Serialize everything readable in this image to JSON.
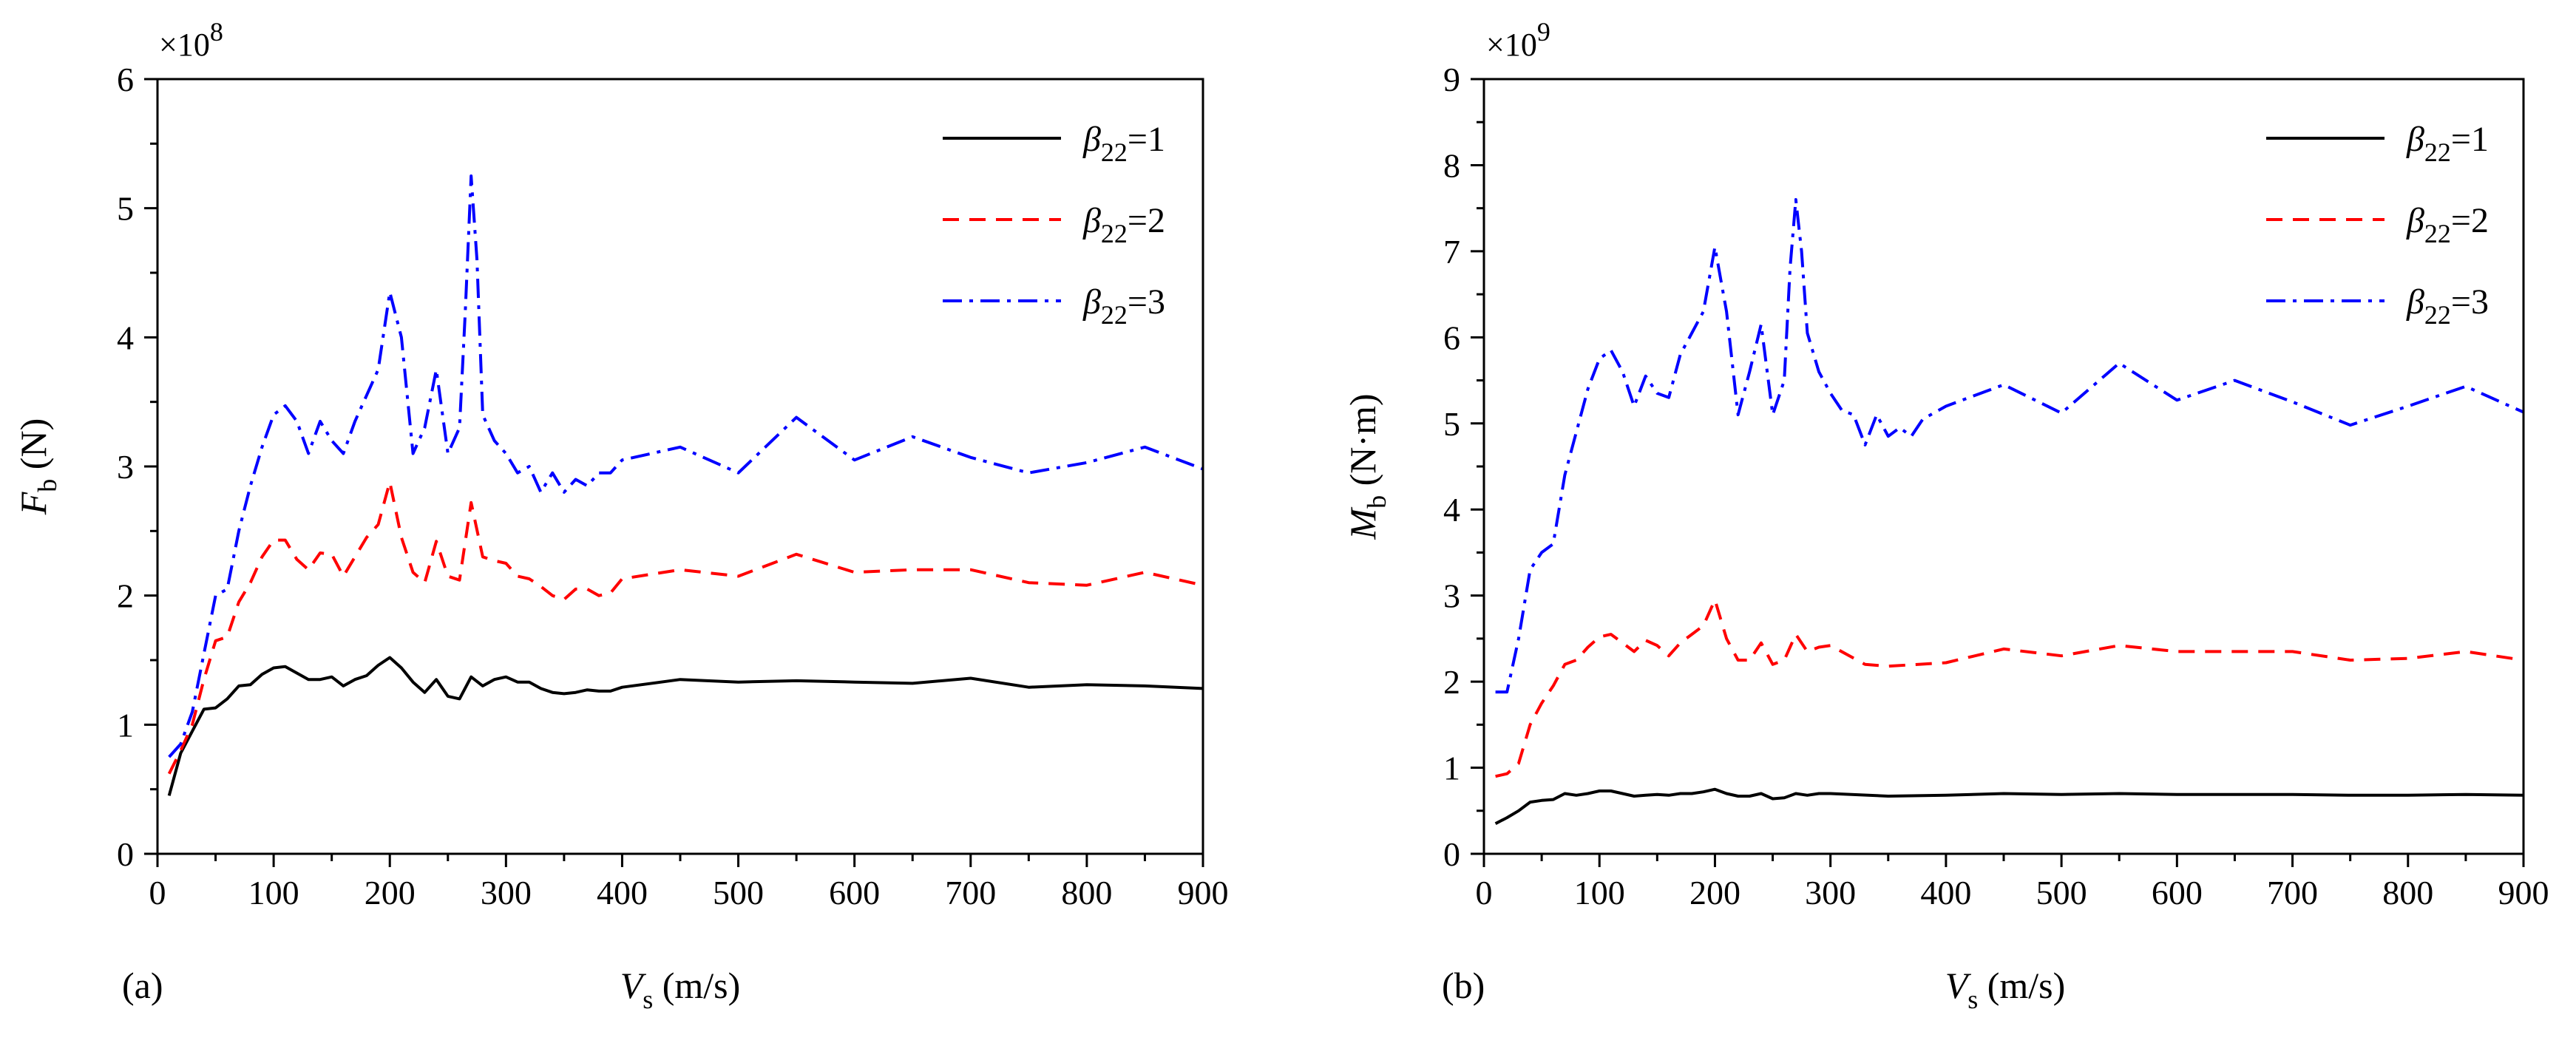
{
  "chart_data": [
    {
      "type": "line",
      "panel_label": "(a)",
      "exponent_label": "×10",
      "exponent_power": "8",
      "ylabel": {
        "symbol": "F",
        "sub": "b",
        "unit": " (N)"
      },
      "xlabel": {
        "symbol": "V",
        "sub": "s",
        "unit": " (m/s)"
      },
      "xlim": [
        0,
        900
      ],
      "ylim": [
        0,
        6
      ],
      "xticks": [
        0,
        100,
        200,
        300,
        400,
        500,
        600,
        700,
        800,
        900
      ],
      "yticks": [
        0,
        1,
        2,
        3,
        4,
        5,
        6
      ],
      "legend_position": "top-right",
      "series": [
        {
          "name": "β22=1",
          "legend_symbol": "β",
          "legend_sub": "22",
          "legend_rest": "=1",
          "color": "#000000",
          "dash": "",
          "x": [
            10,
            20,
            30,
            40,
            50,
            60,
            70,
            80,
            90,
            100,
            110,
            120,
            130,
            140,
            150,
            160,
            170,
            180,
            190,
            200,
            210,
            220,
            230,
            240,
            250,
            260,
            270,
            280,
            290,
            300,
            310,
            320,
            330,
            340,
            350,
            360,
            370,
            380,
            390,
            400,
            450,
            500,
            550,
            600,
            650,
            700,
            750,
            800,
            850,
            900
          ],
          "y": [
            0.45,
            0.78,
            0.95,
            1.12,
            1.13,
            1.2,
            1.3,
            1.31,
            1.39,
            1.44,
            1.45,
            1.4,
            1.35,
            1.35,
            1.37,
            1.3,
            1.35,
            1.38,
            1.46,
            1.52,
            1.44,
            1.33,
            1.25,
            1.35,
            1.22,
            1.2,
            1.37,
            1.3,
            1.35,
            1.37,
            1.33,
            1.33,
            1.28,
            1.25,
            1.24,
            1.25,
            1.27,
            1.26,
            1.26,
            1.29,
            1.35,
            1.33,
            1.34,
            1.33,
            1.32,
            1.36,
            1.29,
            1.31,
            1.3,
            1.28
          ]
        },
        {
          "name": "β22=2",
          "legend_symbol": "β",
          "legend_sub": "22",
          "legend_rest": "=2",
          "color": "#ff0000",
          "dash": "22,14",
          "x": [
            10,
            20,
            30,
            40,
            50,
            60,
            70,
            80,
            90,
            100,
            110,
            120,
            130,
            140,
            150,
            160,
            170,
            180,
            190,
            200,
            210,
            220,
            230,
            240,
            250,
            260,
            270,
            280,
            290,
            300,
            310,
            320,
            330,
            340,
            350,
            360,
            370,
            380,
            390,
            400,
            450,
            500,
            550,
            600,
            650,
            700,
            750,
            800,
            850,
            900
          ],
          "y": [
            0.62,
            0.8,
            1.0,
            1.35,
            1.65,
            1.68,
            1.95,
            2.1,
            2.3,
            2.43,
            2.43,
            2.28,
            2.2,
            2.33,
            2.32,
            2.15,
            2.3,
            2.45,
            2.55,
            2.88,
            2.45,
            2.18,
            2.1,
            2.42,
            2.15,
            2.12,
            2.72,
            2.3,
            2.27,
            2.25,
            2.15,
            2.13,
            2.07,
            2.0,
            1.97,
            2.05,
            2.05,
            2.0,
            2.02,
            2.13,
            2.2,
            2.15,
            2.32,
            2.18,
            2.2,
            2.2,
            2.1,
            2.08,
            2.18,
            2.08
          ]
        },
        {
          "name": "β22=3",
          "legend_symbol": "β",
          "legend_sub": "22",
          "legend_rest": "=3",
          "color": "#0000ff",
          "dash": "26,10,5,10",
          "x": [
            10,
            20,
            30,
            40,
            50,
            60,
            70,
            80,
            90,
            100,
            110,
            120,
            130,
            140,
            150,
            160,
            170,
            180,
            190,
            200,
            210,
            220,
            230,
            240,
            250,
            260,
            265,
            270,
            275,
            280,
            290,
            300,
            310,
            320,
            330,
            340,
            350,
            360,
            370,
            380,
            390,
            400,
            450,
            500,
            550,
            600,
            650,
            700,
            750,
            800,
            850,
            900
          ],
          "y": [
            0.75,
            0.85,
            1.1,
            1.55,
            2.0,
            2.05,
            2.5,
            2.85,
            3.15,
            3.4,
            3.47,
            3.35,
            3.1,
            3.35,
            3.2,
            3.1,
            3.35,
            3.55,
            3.75,
            4.35,
            4.0,
            3.1,
            3.3,
            3.75,
            3.1,
            3.3,
            4.2,
            5.25,
            4.6,
            3.4,
            3.2,
            3.1,
            2.95,
            3.0,
            2.8,
            2.95,
            2.8,
            2.9,
            2.85,
            2.95,
            2.95,
            3.05,
            3.15,
            2.95,
            3.38,
            3.05,
            3.23,
            3.07,
            2.95,
            3.03,
            3.15,
            2.98
          ]
        }
      ]
    },
    {
      "type": "line",
      "panel_label": "(b)",
      "exponent_label": "×10",
      "exponent_power": "9",
      "ylabel": {
        "symbol": "M",
        "sub": "b",
        "unit": " (N·m)"
      },
      "xlabel": {
        "symbol": "V",
        "sub": "s",
        "unit": " (m/s)"
      },
      "xlim": [
        0,
        900
      ],
      "ylim": [
        0,
        9
      ],
      "xticks": [
        0,
        100,
        200,
        300,
        400,
        500,
        600,
        700,
        800,
        900
      ],
      "yticks": [
        0,
        1,
        2,
        3,
        4,
        5,
        6,
        7,
        8,
        9
      ],
      "legend_position": "top-right",
      "series": [
        {
          "name": "β22=1",
          "legend_symbol": "β",
          "legend_sub": "22",
          "legend_rest": "=1",
          "color": "#000000",
          "dash": "",
          "x": [
            10,
            20,
            30,
            40,
            50,
            60,
            70,
            80,
            90,
            100,
            110,
            120,
            130,
            140,
            150,
            160,
            170,
            180,
            190,
            200,
            210,
            220,
            230,
            240,
            250,
            260,
            270,
            280,
            290,
            300,
            350,
            400,
            450,
            500,
            550,
            600,
            650,
            700,
            750,
            800,
            850,
            900
          ],
          "y": [
            0.35,
            0.42,
            0.5,
            0.6,
            0.62,
            0.63,
            0.7,
            0.68,
            0.7,
            0.73,
            0.73,
            0.7,
            0.67,
            0.68,
            0.69,
            0.68,
            0.7,
            0.7,
            0.72,
            0.75,
            0.7,
            0.67,
            0.67,
            0.7,
            0.64,
            0.65,
            0.7,
            0.68,
            0.7,
            0.7,
            0.67,
            0.68,
            0.7,
            0.69,
            0.7,
            0.69,
            0.69,
            0.69,
            0.68,
            0.68,
            0.69,
            0.68
          ]
        },
        {
          "name": "β22=2",
          "legend_symbol": "β",
          "legend_sub": "22",
          "legend_rest": "=2",
          "color": "#ff0000",
          "dash": "22,14",
          "x": [
            10,
            20,
            30,
            40,
            50,
            60,
            70,
            80,
            90,
            100,
            110,
            120,
            130,
            140,
            150,
            160,
            170,
            180,
            190,
            200,
            210,
            220,
            230,
            240,
            250,
            260,
            270,
            280,
            290,
            300,
            330,
            350,
            400,
            450,
            500,
            550,
            600,
            650,
            700,
            750,
            800,
            850,
            900
          ],
          "y": [
            0.9,
            0.93,
            1.05,
            1.5,
            1.75,
            1.95,
            2.2,
            2.25,
            2.4,
            2.52,
            2.55,
            2.45,
            2.35,
            2.48,
            2.42,
            2.3,
            2.45,
            2.55,
            2.65,
            2.95,
            2.5,
            2.25,
            2.25,
            2.45,
            2.2,
            2.25,
            2.55,
            2.35,
            2.4,
            2.42,
            2.2,
            2.18,
            2.22,
            2.38,
            2.3,
            2.42,
            2.35,
            2.35,
            2.35,
            2.25,
            2.27,
            2.35,
            2.25
          ]
        },
        {
          "name": "β22=3",
          "legend_symbol": "β",
          "legend_sub": "22",
          "legend_rest": "=3",
          "color": "#0000ff",
          "dash": "26,10,5,10",
          "x": [
            10,
            20,
            30,
            40,
            50,
            60,
            70,
            80,
            90,
            100,
            110,
            120,
            130,
            140,
            150,
            160,
            170,
            180,
            190,
            200,
            210,
            220,
            230,
            240,
            250,
            260,
            265,
            270,
            275,
            280,
            290,
            300,
            310,
            320,
            330,
            340,
            350,
            360,
            370,
            380,
            400,
            450,
            500,
            550,
            600,
            650,
            700,
            750,
            800,
            850,
            900
          ],
          "y": [
            1.88,
            1.88,
            2.5,
            3.3,
            3.5,
            3.6,
            4.4,
            4.9,
            5.4,
            5.75,
            5.85,
            5.6,
            5.2,
            5.55,
            5.35,
            5.3,
            5.8,
            6.05,
            6.3,
            7.05,
            6.3,
            5.1,
            5.6,
            6.15,
            5.1,
            5.5,
            6.8,
            7.6,
            7.0,
            6.05,
            5.6,
            5.35,
            5.15,
            5.1,
            4.75,
            5.1,
            4.85,
            4.95,
            4.85,
            5.05,
            5.2,
            5.45,
            5.12,
            5.7,
            5.27,
            5.5,
            5.25,
            4.98,
            5.2,
            5.43,
            5.13
          ]
        }
      ]
    }
  ]
}
